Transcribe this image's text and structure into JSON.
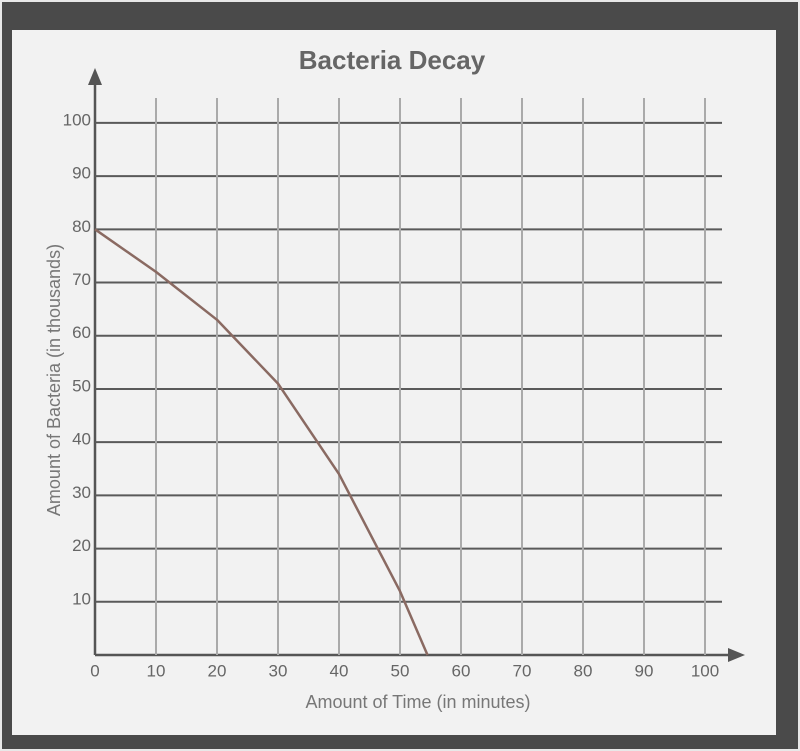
{
  "chart_data": {
    "type": "line",
    "title": "Bacteria Decay",
    "x_label": "Amount of Time (in minutes)",
    "y_label": "Amount of Bacteria (in thousands)",
    "x": [
      0,
      10,
      20,
      30,
      40,
      50,
      54.5
    ],
    "values": [
      80,
      72,
      63,
      51,
      34,
      12,
      0
    ],
    "color": "#8a6a62",
    "xlim": [
      0,
      105
    ],
    "ylim": [
      0,
      106
    ],
    "xticks": [
      0,
      10,
      20,
      30,
      40,
      50,
      60,
      70,
      80,
      90,
      100
    ],
    "yticks": [
      10,
      20,
      30,
      40,
      50,
      60,
      70,
      80,
      90,
      100
    ],
    "grid": true
  }
}
